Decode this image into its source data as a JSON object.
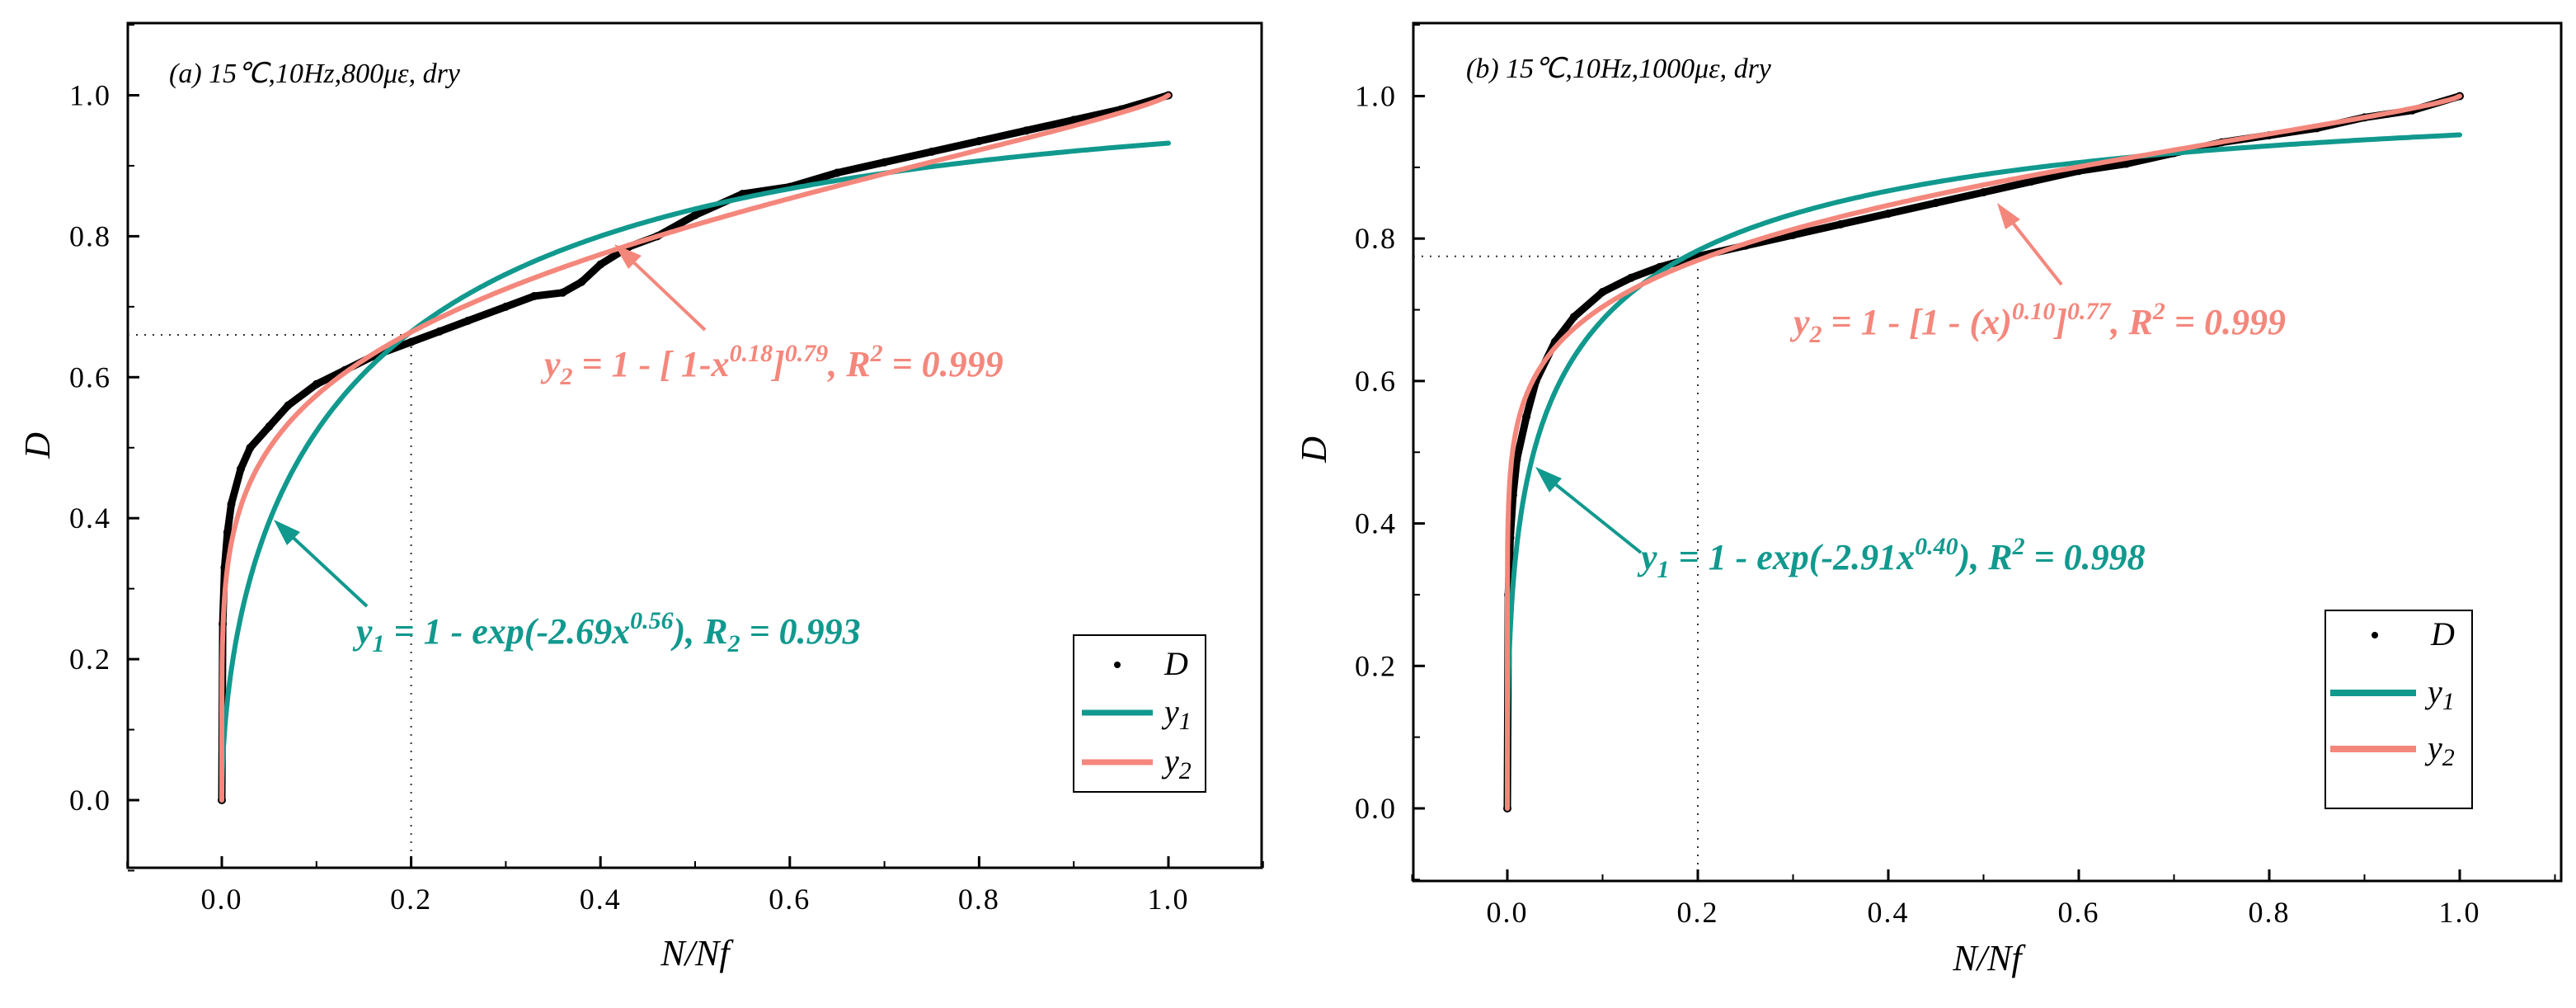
{
  "colors": {
    "data": "#000000",
    "y1": "#11998e",
    "y2": "#f4877c",
    "guide": "#333333"
  },
  "chart_data": [
    {
      "type": "line",
      "panel_label": "(a) 15℃,10Hz,800με, dry",
      "xlabel": "N/Nf",
      "ylabel": "D",
      "xlim": [
        -0.1,
        1.1
      ],
      "ylim": [
        -0.1,
        1.1
      ],
      "xticks": [
        0.0,
        0.2,
        0.4,
        0.6,
        0.8,
        1.0
      ],
      "yticks": [
        0.0,
        0.2,
        0.4,
        0.6,
        0.8,
        1.0
      ],
      "xtick_labels": [
        "0.0",
        "0.2",
        "0.4",
        "0.6",
        "0.8",
        "1.0"
      ],
      "ytick_labels": [
        "0.0",
        "0.2",
        "0.4",
        "0.6",
        "0.8",
        "1.0"
      ],
      "guide_point": {
        "x": 0.2,
        "y": 0.66
      },
      "models": {
        "y1": {
          "form": "1-exp(-a*x^b)",
          "a": 2.69,
          "b": 0.56
        },
        "y2": {
          "form": "1-[1-x^p]^q",
          "p": 0.18,
          "q": 0.79
        }
      },
      "series": [
        {
          "name": "D",
          "x": [
            0.0,
            0.001,
            0.003,
            0.006,
            0.01,
            0.02,
            0.03,
            0.05,
            0.07,
            0.1,
            0.13,
            0.16,
            0.2,
            0.23,
            0.26,
            0.3,
            0.33,
            0.36,
            0.38,
            0.4,
            0.43,
            0.46,
            0.5,
            0.55,
            0.6,
            0.65,
            0.7,
            0.75,
            0.8,
            0.85,
            0.9,
            0.95,
            1.0
          ],
          "values": [
            0.0,
            0.25,
            0.33,
            0.38,
            0.42,
            0.47,
            0.5,
            0.53,
            0.56,
            0.59,
            0.61,
            0.63,
            0.65,
            0.665,
            0.68,
            0.7,
            0.715,
            0.72,
            0.735,
            0.76,
            0.785,
            0.8,
            0.83,
            0.86,
            0.87,
            0.89,
            0.905,
            0.92,
            0.935,
            0.95,
            0.965,
            0.98,
            1.0
          ]
        },
        {
          "name": "y1",
          "equation_ref": "y1"
        },
        {
          "name": "y2",
          "equation_ref": "y2"
        }
      ],
      "legend": {
        "position": "bottom-right",
        "entries": [
          "D",
          "y1",
          "y2"
        ]
      },
      "annotations": {
        "y1": {
          "lhs_var": "y",
          "lhs_sub": "1",
          "body": " = 1 - exp(-2.69x",
          "sup": "0.56",
          "tail": "), R",
          "tail_sub": "2",
          "tail_end": " = 0.993"
        },
        "y2": {
          "lhs_var": "y",
          "lhs_sub": "2",
          "body": " = 1 - [ 1-x",
          "sup": "0.18",
          "tail": "]",
          "tail_sup": "0.79",
          "tail_end": ", R",
          "r_sup": "2",
          "r_end": " = 0.999"
        }
      }
    },
    {
      "type": "line",
      "panel_label": "(b) 15℃,10Hz,1000με, dry",
      "xlabel": "N/Nf",
      "ylabel": "D",
      "xlim": [
        -0.1,
        1.1
      ],
      "ylim": [
        -0.1,
        1.1
      ],
      "xticks": [
        0.0,
        0.2,
        0.4,
        0.6,
        0.8,
        1.0
      ],
      "yticks": [
        0.0,
        0.2,
        0.4,
        0.6,
        0.8,
        1.0
      ],
      "xtick_labels": [
        "0.0",
        "0.2",
        "0.4",
        "0.6",
        "0.8",
        "1.0"
      ],
      "ytick_labels": [
        "0.0",
        "0.2",
        "0.4",
        "0.6",
        "0.8",
        "1.0"
      ],
      "guide_point": {
        "x": 0.2,
        "y": 0.775
      },
      "models": {
        "y1": {
          "form": "1-exp(-a*x^b)",
          "a": 2.91,
          "b": 0.4
        },
        "y2": {
          "form": "1-[1-x^p]^q",
          "p": 0.1,
          "q": 0.77
        }
      },
      "series": [
        {
          "name": "D",
          "x": [
            0.0,
            0.001,
            0.003,
            0.006,
            0.01,
            0.02,
            0.03,
            0.05,
            0.07,
            0.1,
            0.13,
            0.16,
            0.2,
            0.25,
            0.3,
            0.35,
            0.4,
            0.45,
            0.5,
            0.55,
            0.6,
            0.65,
            0.7,
            0.75,
            0.8,
            0.85,
            0.9,
            0.95,
            1.0
          ],
          "values": [
            0.0,
            0.3,
            0.38,
            0.44,
            0.49,
            0.55,
            0.6,
            0.655,
            0.69,
            0.725,
            0.745,
            0.76,
            0.775,
            0.79,
            0.805,
            0.82,
            0.835,
            0.85,
            0.865,
            0.88,
            0.895,
            0.905,
            0.92,
            0.935,
            0.945,
            0.955,
            0.97,
            0.98,
            1.0
          ]
        },
        {
          "name": "y1",
          "equation_ref": "y1"
        },
        {
          "name": "y2",
          "equation_ref": "y2"
        }
      ],
      "legend": {
        "position": "bottom-right",
        "entries": [
          "D",
          "y1",
          "y2"
        ]
      },
      "annotations": {
        "y1": {
          "lhs_var": "y",
          "lhs_sub": "1",
          "body": " = 1 - exp(-2.91x",
          "sup": "0.40",
          "tail": "), R",
          "tail_sup": "2",
          "tail_end": " = 0.998"
        },
        "y2": {
          "lhs_var": "y",
          "lhs_sub": "2",
          "body": " = 1 - [1 - (x)",
          "sup": "0.10",
          "tail": "]",
          "tail_sup": "0.77",
          "tail_end": ", R",
          "r_sup": "2",
          "r_end": " = 0.999"
        }
      }
    }
  ]
}
